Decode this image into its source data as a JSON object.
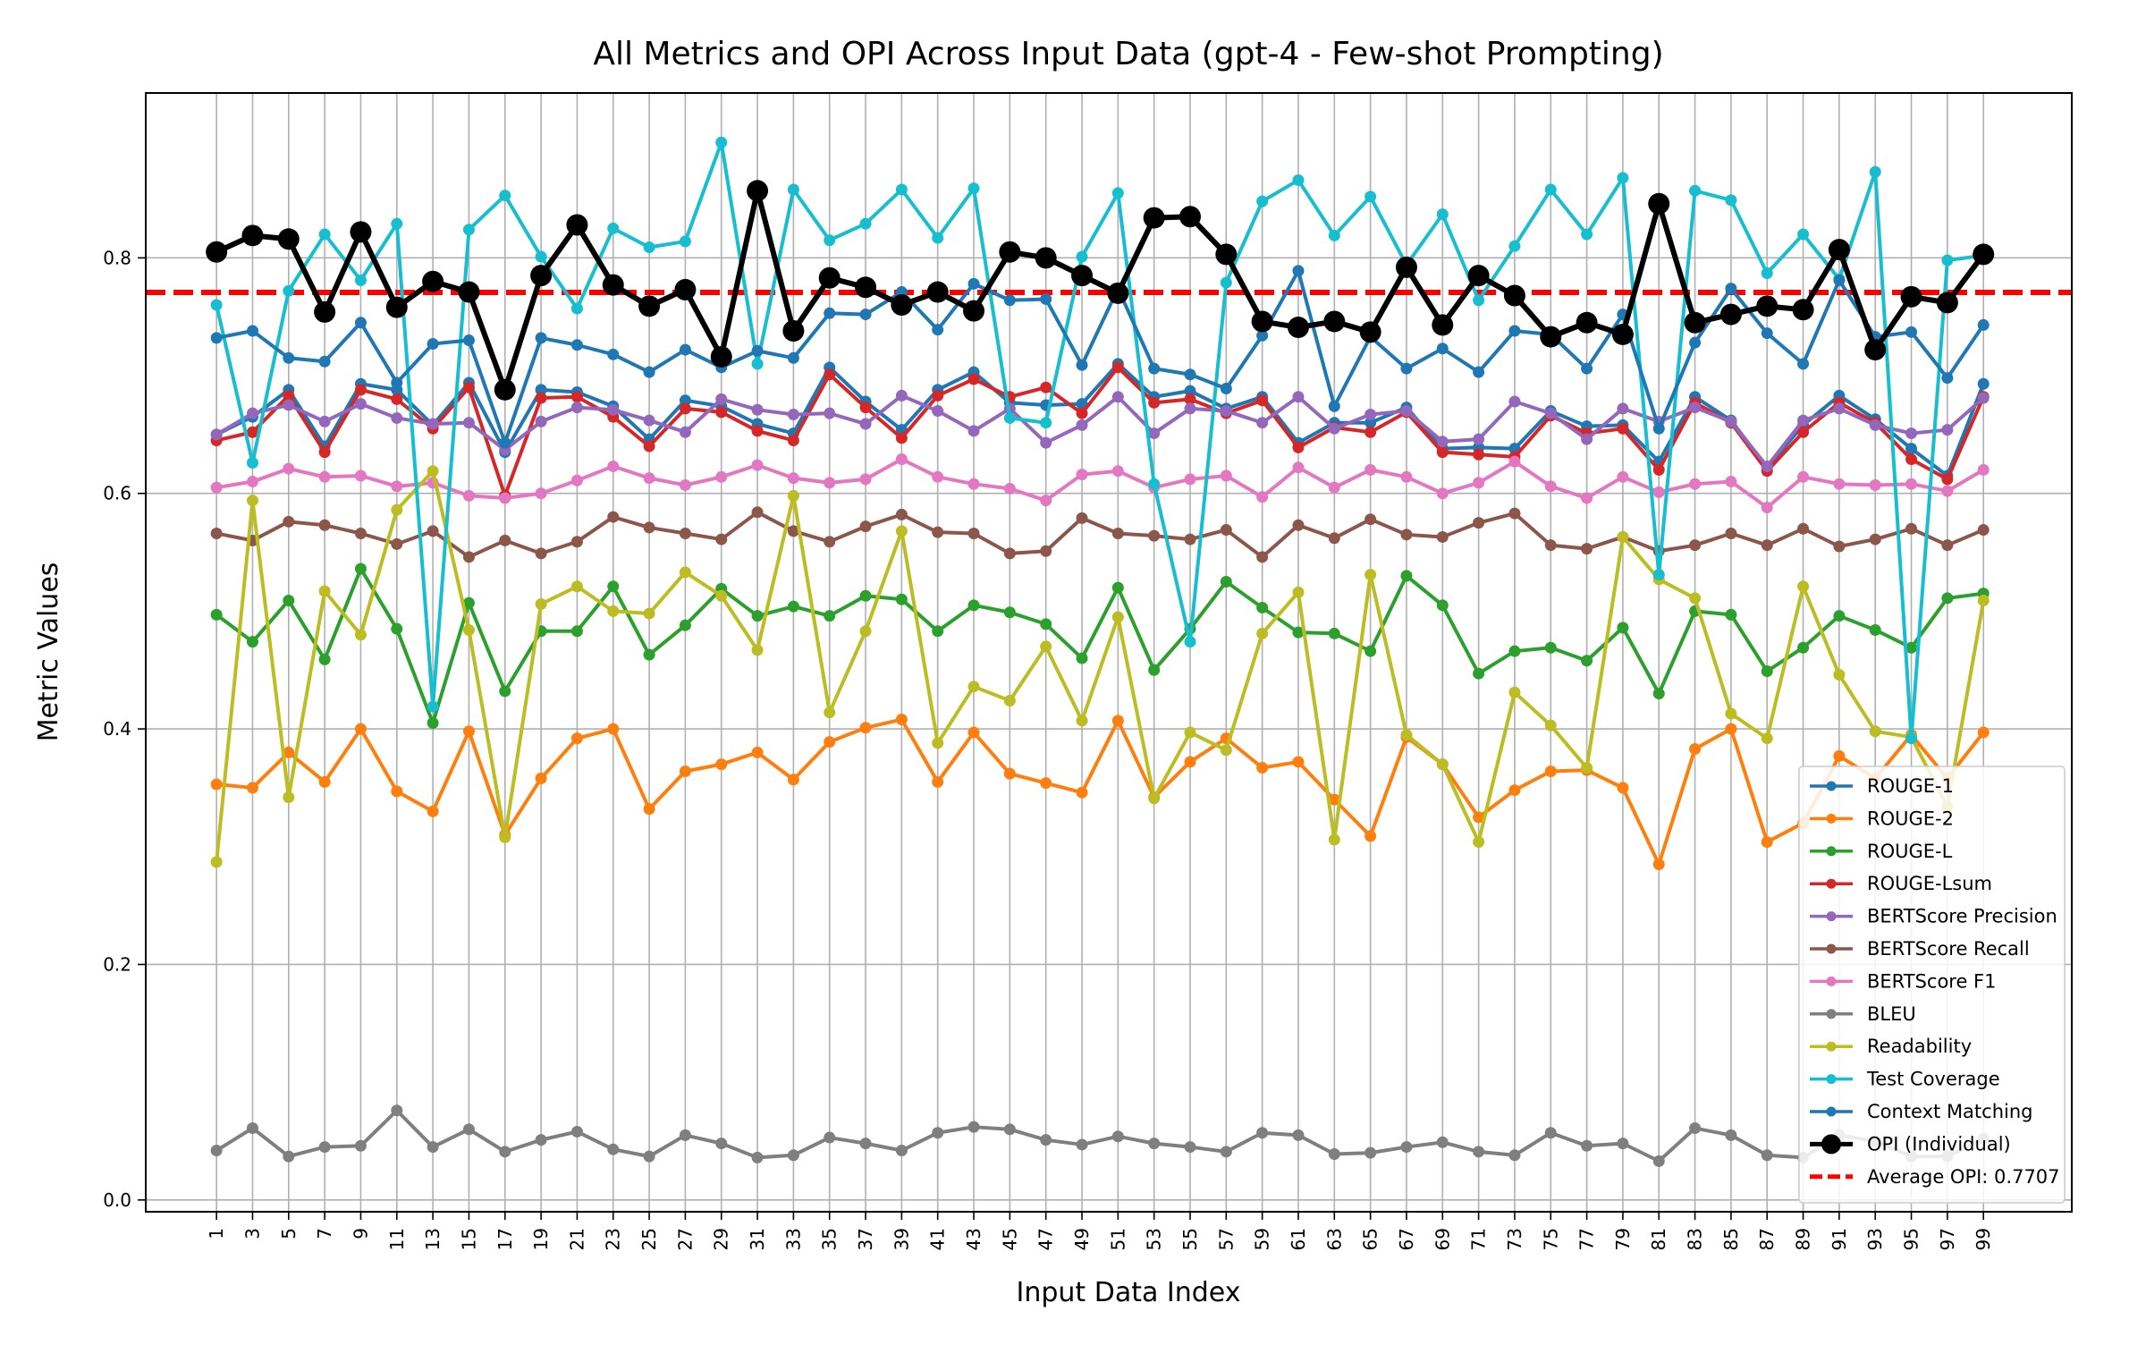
{
  "chart_data": {
    "type": "line",
    "title": "All Metrics and OPI Across Input Data (gpt-4 - Few-shot Prompting)",
    "xlabel": "Input Data Index",
    "ylabel": "Metric Values",
    "ylim": [
      -0.01,
      0.94
    ],
    "yticks": [
      0.0,
      0.2,
      0.4,
      0.6,
      0.8
    ],
    "ytick_labels": [
      "0.0",
      "0.2",
      "0.4",
      "0.6",
      "0.8"
    ],
    "x": [
      1,
      3,
      5,
      7,
      9,
      11,
      13,
      15,
      17,
      19,
      21,
      23,
      25,
      27,
      29,
      31,
      33,
      35,
      37,
      39,
      41,
      43,
      45,
      47,
      49,
      51,
      53,
      55,
      57,
      59,
      61,
      63,
      65,
      67,
      69,
      71,
      73,
      75,
      77,
      79,
      81,
      83,
      85,
      87,
      89,
      91,
      93,
      95,
      97,
      99
    ],
    "xtick_labels": [
      "1",
      "3",
      "5",
      "7",
      "9",
      "11",
      "13",
      "15",
      "17",
      "19",
      "21",
      "23",
      "25",
      "27",
      "29",
      "31",
      "33",
      "35",
      "37",
      "39",
      "41",
      "43",
      "45",
      "47",
      "49",
      "51",
      "53",
      "55",
      "57",
      "59",
      "61",
      "63",
      "65",
      "67",
      "69",
      "71",
      "73",
      "75",
      "77",
      "79",
      "81",
      "83",
      "85",
      "87",
      "89",
      "91",
      "93",
      "95",
      "97",
      "99"
    ],
    "grid": true,
    "legend_position": "lower-right",
    "series": [
      {
        "name": "ROUGE-1",
        "color": "#1f77b4",
        "values": [
          0.65,
          0.665,
          0.688,
          0.64,
          0.693,
          0.688,
          0.658,
          0.694,
          0.635,
          0.688,
          0.686,
          0.674,
          0.646,
          0.679,
          0.674,
          0.659,
          0.651,
          0.707,
          0.678,
          0.654,
          0.688,
          0.703,
          0.677,
          0.675,
          0.676,
          0.71,
          0.682,
          0.687,
          0.672,
          0.682,
          0.643,
          0.66,
          0.66,
          0.673,
          0.638,
          0.639,
          0.638,
          0.67,
          0.657,
          0.658,
          0.627,
          0.682,
          0.662,
          0.622,
          0.658,
          0.683,
          0.663,
          0.638,
          0.615,
          0.693
        ]
      },
      {
        "name": "ROUGE-2",
        "color": "#ff7f0e",
        "values": [
          0.353,
          0.35,
          0.38,
          0.355,
          0.4,
          0.347,
          0.33,
          0.398,
          0.31,
          0.358,
          0.392,
          0.4,
          0.332,
          0.364,
          0.37,
          0.38,
          0.357,
          0.389,
          0.401,
          0.408,
          0.355,
          0.397,
          0.362,
          0.354,
          0.346,
          0.407,
          0.342,
          0.372,
          0.392,
          0.367,
          0.372,
          0.34,
          0.309,
          0.393,
          0.37,
          0.325,
          0.348,
          0.364,
          0.365,
          0.35,
          0.285,
          0.383,
          0.4,
          0.304,
          0.32,
          0.377,
          0.358,
          0.395,
          0.358,
          0.397
        ]
      },
      {
        "name": "ROUGE-L",
        "color": "#2ca02c",
        "values": [
          0.497,
          0.474,
          0.509,
          0.459,
          0.536,
          0.485,
          0.405,
          0.507,
          0.432,
          0.483,
          0.483,
          0.521,
          0.463,
          0.488,
          0.519,
          0.496,
          0.504,
          0.496,
          0.513,
          0.51,
          0.483,
          0.505,
          0.499,
          0.489,
          0.46,
          0.52,
          0.45,
          0.485,
          0.525,
          0.503,
          0.482,
          0.481,
          0.466,
          0.53,
          0.505,
          0.447,
          0.466,
          0.469,
          0.458,
          0.486,
          0.43,
          0.5,
          0.497,
          0.449,
          0.469,
          0.496,
          0.484,
          0.469,
          0.511,
          0.515
        ]
      },
      {
        "name": "ROUGE-Lsum",
        "color": "#d62728",
        "values": [
          0.645,
          0.652,
          0.683,
          0.635,
          0.688,
          0.68,
          0.655,
          0.69,
          0.598,
          0.681,
          0.682,
          0.665,
          0.64,
          0.672,
          0.669,
          0.653,
          0.645,
          0.701,
          0.673,
          0.647,
          0.683,
          0.697,
          0.682,
          0.69,
          0.668,
          0.707,
          0.677,
          0.68,
          0.668,
          0.679,
          0.639,
          0.656,
          0.652,
          0.669,
          0.635,
          0.633,
          0.631,
          0.666,
          0.651,
          0.655,
          0.62,
          0.677,
          0.66,
          0.619,
          0.652,
          0.677,
          0.66,
          0.629,
          0.612,
          0.682
        ]
      },
      {
        "name": "BERTScore Precision",
        "color": "#9467bd",
        "values": [
          0.65,
          0.668,
          0.675,
          0.661,
          0.676,
          0.664,
          0.659,
          0.66,
          0.637,
          0.661,
          0.673,
          0.671,
          0.662,
          0.652,
          0.68,
          0.671,
          0.667,
          0.668,
          0.659,
          0.683,
          0.67,
          0.653,
          0.672,
          0.643,
          0.658,
          0.682,
          0.651,
          0.672,
          0.67,
          0.66,
          0.682,
          0.655,
          0.667,
          0.67,
          0.644,
          0.646,
          0.678,
          0.668,
          0.646,
          0.672,
          0.661,
          0.673,
          0.661,
          0.623,
          0.662,
          0.672,
          0.658,
          0.651,
          0.654,
          0.681
        ]
      },
      {
        "name": "BERTScore Recall",
        "color": "#8c564b",
        "values": [
          0.566,
          0.56,
          0.576,
          0.573,
          0.566,
          0.557,
          0.568,
          0.546,
          0.56,
          0.549,
          0.559,
          0.58,
          0.571,
          0.566,
          0.561,
          0.584,
          0.568,
          0.559,
          0.572,
          0.582,
          0.567,
          0.566,
          0.549,
          0.551,
          0.579,
          0.566,
          0.564,
          0.561,
          0.569,
          0.546,
          0.573,
          0.562,
          0.578,
          0.565,
          0.563,
          0.575,
          0.583,
          0.556,
          0.553,
          0.563,
          0.551,
          0.556,
          0.566,
          0.556,
          0.57,
          0.555,
          0.561,
          0.57,
          0.556,
          0.569
        ]
      },
      {
        "name": "BERTScore F1",
        "color": "#e377c2",
        "values": [
          0.605,
          0.61,
          0.621,
          0.614,
          0.615,
          0.606,
          0.609,
          0.598,
          0.596,
          0.6,
          0.611,
          0.623,
          0.613,
          0.607,
          0.614,
          0.624,
          0.613,
          0.609,
          0.612,
          0.629,
          0.614,
          0.608,
          0.604,
          0.594,
          0.616,
          0.619,
          0.605,
          0.612,
          0.615,
          0.597,
          0.622,
          0.605,
          0.62,
          0.614,
          0.6,
          0.609,
          0.627,
          0.606,
          0.596,
          0.614,
          0.601,
          0.608,
          0.61,
          0.588,
          0.614,
          0.608,
          0.607,
          0.608,
          0.602,
          0.62
        ]
      },
      {
        "name": "BLEU",
        "color": "#7f7f7f",
        "values": [
          0.042,
          0.061,
          0.037,
          0.045,
          0.046,
          0.076,
          0.045,
          0.06,
          0.041,
          0.051,
          0.058,
          0.043,
          0.037,
          0.055,
          0.048,
          0.036,
          0.038,
          0.053,
          0.048,
          0.042,
          0.057,
          0.062,
          0.06,
          0.051,
          0.047,
          0.054,
          0.048,
          0.045,
          0.041,
          0.057,
          0.055,
          0.039,
          0.04,
          0.045,
          0.049,
          0.041,
          0.038,
          0.057,
          0.046,
          0.048,
          0.033,
          0.061,
          0.055,
          0.038,
          0.036,
          0.055,
          0.05,
          0.037,
          0.037,
          0.052
        ]
      },
      {
        "name": "Readability",
        "color": "#bcbd22",
        "values": [
          0.287,
          0.594,
          0.342,
          0.517,
          0.48,
          0.586,
          0.619,
          0.484,
          0.308,
          0.506,
          0.521,
          0.5,
          0.498,
          0.533,
          0.513,
          0.467,
          0.598,
          0.414,
          0.483,
          0.568,
          0.388,
          0.436,
          0.424,
          0.47,
          0.407,
          0.495,
          0.341,
          0.397,
          0.382,
          0.481,
          0.516,
          0.306,
          0.531,
          0.395,
          0.37,
          0.304,
          0.431,
          0.403,
          0.367,
          0.563,
          0.527,
          0.511,
          0.413,
          0.392,
          0.521,
          0.446,
          0.398,
          0.393,
          0.334,
          0.509
        ]
      },
      {
        "name": "Test Coverage",
        "color": "#17becf",
        "values": [
          0.76,
          0.626,
          0.772,
          0.82,
          0.781,
          0.829,
          0.419,
          0.824,
          0.853,
          0.801,
          0.757,
          0.825,
          0.809,
          0.814,
          0.898,
          0.71,
          0.858,
          0.815,
          0.829,
          0.858,
          0.817,
          0.859,
          0.664,
          0.66,
          0.801,
          0.855,
          0.608,
          0.474,
          0.779,
          0.848,
          0.866,
          0.819,
          0.852,
          0.794,
          0.837,
          0.764,
          0.81,
          0.858,
          0.82,
          0.868,
          0.531,
          0.857,
          0.849,
          0.787,
          0.82,
          0.782,
          0.873,
          0.392,
          0.798,
          0.802
        ]
      },
      {
        "name": "Context Matching",
        "color": "#1f77b4",
        "values": [
          0.732,
          0.738,
          0.715,
          0.712,
          0.745,
          0.694,
          0.727,
          0.73,
          0.643,
          0.732,
          0.726,
          0.718,
          0.703,
          0.722,
          0.707,
          0.721,
          0.715,
          0.753,
          0.752,
          0.771,
          0.739,
          0.778,
          0.764,
          0.765,
          0.709,
          0.774,
          0.706,
          0.701,
          0.689,
          0.734,
          0.789,
          0.674,
          0.733,
          0.706,
          0.723,
          0.703,
          0.738,
          0.735,
          0.706,
          0.752,
          0.655,
          0.728,
          0.774,
          0.736,
          0.71,
          0.781,
          0.733,
          0.737,
          0.698,
          0.743
        ]
      },
      {
        "name": "OPI (Individual)",
        "color": "#000000",
        "values": [
          0.805,
          0.819,
          0.816,
          0.754,
          0.822,
          0.758,
          0.78,
          0.771,
          0.688,
          0.785,
          0.828,
          0.777,
          0.759,
          0.773,
          0.716,
          0.857,
          0.738,
          0.783,
          0.775,
          0.76,
          0.771,
          0.755,
          0.805,
          0.8,
          0.785,
          0.77,
          0.834,
          0.835,
          0.803,
          0.746,
          0.741,
          0.746,
          0.737,
          0.792,
          0.743,
          0.785,
          0.768,
          0.733,
          0.745,
          0.735,
          0.846,
          0.745,
          0.752,
          0.759,
          0.756,
          0.807,
          0.722,
          0.767,
          0.762,
          0.803
        ]
      }
    ],
    "reference_line": {
      "name": "Average OPI: 0.7707",
      "value": 0.7707,
      "color": "#ff0000",
      "style": "dashed"
    }
  }
}
